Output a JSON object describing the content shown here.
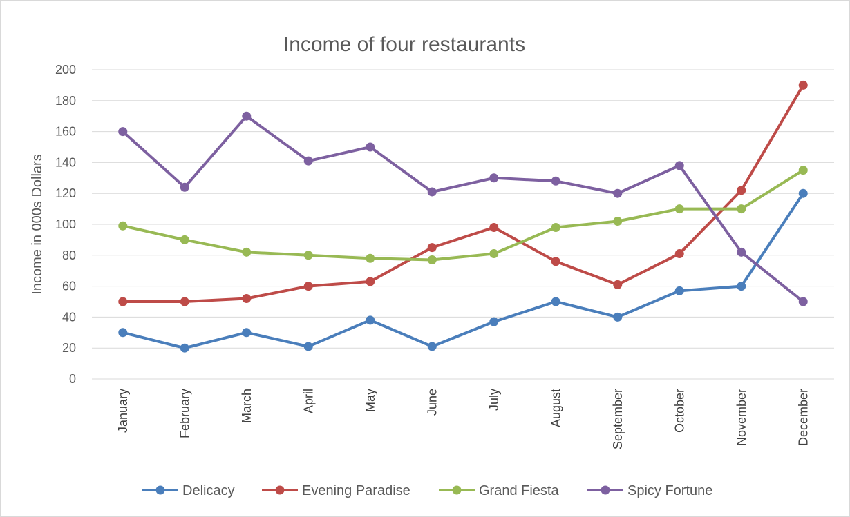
{
  "chart_data": {
    "type": "line",
    "title": "Income of four restaurants",
    "xlabel": "",
    "ylabel": "Income in 000s Dollars",
    "ylim": [
      0,
      200
    ],
    "yticks": [
      0,
      20,
      40,
      60,
      80,
      100,
      120,
      140,
      160,
      180,
      200
    ],
    "grid": true,
    "legend_position": "bottom",
    "categories": [
      "January",
      "February",
      "March",
      "April",
      "May",
      "June",
      "July",
      "August",
      "September",
      "October",
      "November",
      "December"
    ],
    "series": [
      {
        "name": "Delicacy",
        "color": "#4a7ebb",
        "values": [
          30,
          20,
          30,
          21,
          38,
          21,
          37,
          50,
          40,
          57,
          60,
          120
        ]
      },
      {
        "name": "Evening Paradise",
        "color": "#be4b48",
        "values": [
          50,
          50,
          52,
          60,
          63,
          85,
          98,
          76,
          61,
          81,
          122,
          190
        ]
      },
      {
        "name": "Grand Fiesta",
        "color": "#98b954",
        "values": [
          99,
          90,
          82,
          80,
          78,
          77,
          81,
          98,
          102,
          110,
          110,
          135
        ]
      },
      {
        "name": "Spicy Fortune",
        "color": "#7d60a0",
        "values": [
          160,
          124,
          170,
          141,
          150,
          121,
          130,
          128,
          120,
          138,
          82,
          50
        ]
      }
    ]
  }
}
